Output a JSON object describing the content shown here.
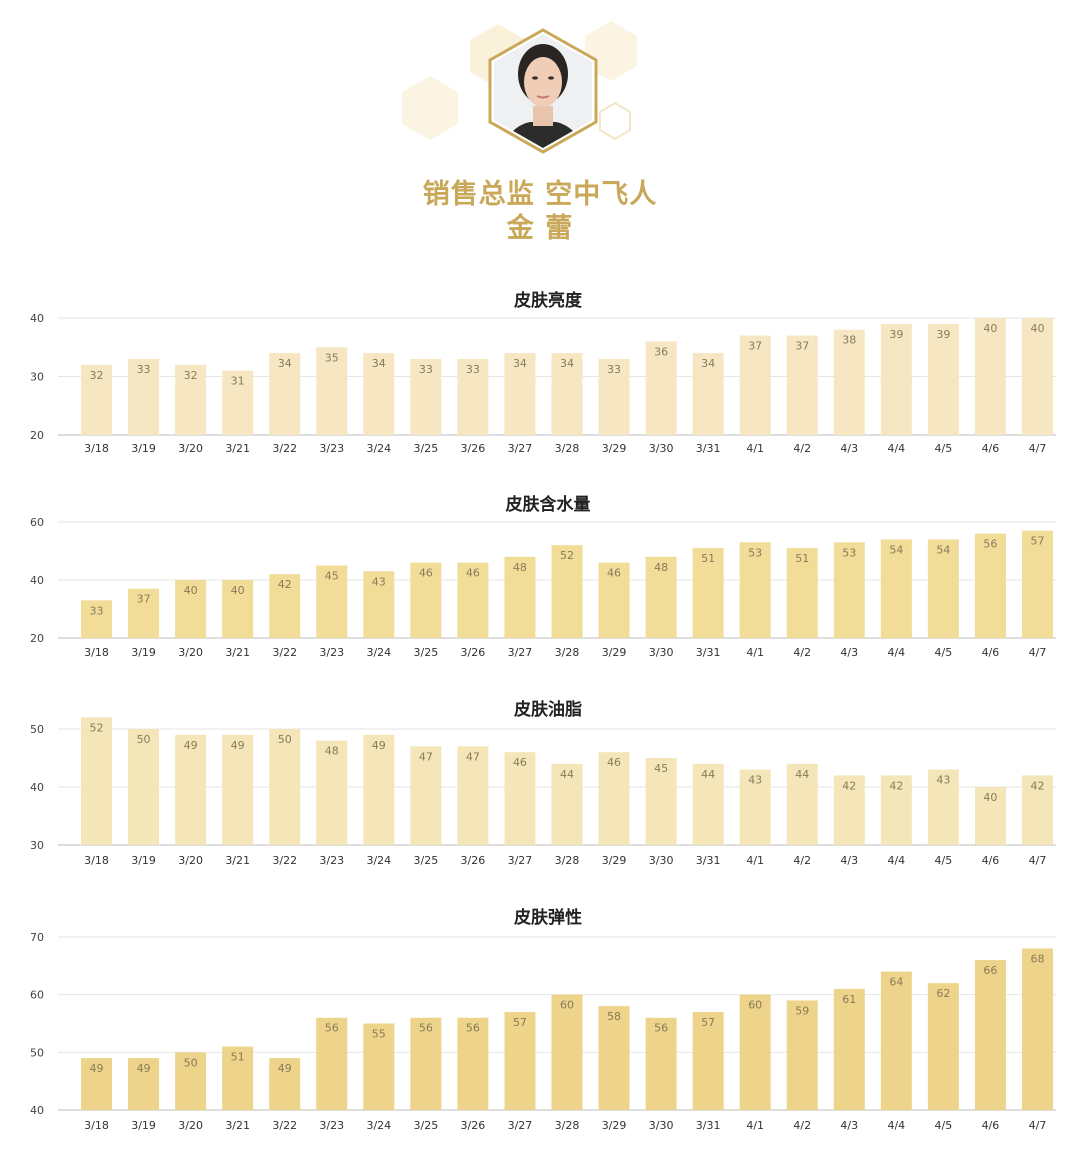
{
  "profile": {
    "title_line": "销售总监 空中飞人",
    "name_line": "金 蕾"
  },
  "colors": {
    "accent_gold": "#c9a85a",
    "bar_light": "#f6e7c2",
    "bar_mid": "#f1dc98",
    "bar_pale": "#f4e6b8",
    "bar_deep": "#edd48a"
  },
  "chart_data": [
    {
      "type": "bar",
      "title": "皮肤亮度",
      "categories": [
        "3/18",
        "3/19",
        "3/20",
        "3/21",
        "3/22",
        "3/23",
        "3/24",
        "3/25",
        "3/26",
        "3/27",
        "3/28",
        "3/29",
        "3/30",
        "3/31",
        "4/1",
        "4/2",
        "4/3",
        "4/4",
        "4/5",
        "4/6",
        "4/7"
      ],
      "values": [
        32,
        33,
        32,
        31,
        34,
        35,
        34,
        33,
        33,
        34,
        34,
        33,
        36,
        34,
        37,
        37,
        38,
        39,
        39,
        40,
        40
      ],
      "ylim": [
        20,
        40
      ],
      "yticks": [
        20,
        30,
        40
      ],
      "grid": true,
      "color": "#f6e7c2"
    },
    {
      "type": "bar",
      "title": "皮肤含水量",
      "categories": [
        "3/18",
        "3/19",
        "3/20",
        "3/21",
        "3/22",
        "3/23",
        "3/24",
        "3/25",
        "3/26",
        "3/27",
        "3/28",
        "3/29",
        "3/30",
        "3/31",
        "4/1",
        "4/2",
        "4/3",
        "4/4",
        "4/5",
        "4/6",
        "4/7"
      ],
      "values": [
        33,
        37,
        40,
        40,
        42,
        45,
        43,
        46,
        46,
        48,
        52,
        46,
        48,
        51,
        53,
        51,
        53,
        54,
        54,
        56,
        57
      ],
      "ylim": [
        20,
        60
      ],
      "yticks": [
        20,
        40,
        60
      ],
      "grid": true,
      "color": "#f1dc98"
    },
    {
      "type": "bar",
      "title": "皮肤油脂",
      "categories": [
        "3/18",
        "3/19",
        "3/20",
        "3/21",
        "3/22",
        "3/23",
        "3/24",
        "3/25",
        "3/26",
        "3/27",
        "3/28",
        "3/29",
        "3/30",
        "3/31",
        "4/1",
        "4/2",
        "4/3",
        "4/4",
        "4/5",
        "4/6",
        "4/7"
      ],
      "values": [
        52,
        50,
        49,
        49,
        50,
        48,
        49,
        47,
        47,
        46,
        44,
        46,
        45,
        44,
        43,
        44,
        42,
        42,
        43,
        40,
        42
      ],
      "ylim": [
        30,
        50
      ],
      "yticks": [
        30,
        40,
        50
      ],
      "grid": true,
      "color": "#f4e6b8"
    },
    {
      "type": "bar",
      "title": "皮肤弹性",
      "categories": [
        "3/18",
        "3/19",
        "3/20",
        "3/21",
        "3/22",
        "3/23",
        "3/24",
        "3/25",
        "3/26",
        "3/27",
        "3/28",
        "3/29",
        "3/30",
        "3/31",
        "4/1",
        "4/2",
        "4/3",
        "4/4",
        "4/5",
        "4/6",
        "4/7"
      ],
      "values": [
        49,
        49,
        50,
        51,
        49,
        56,
        55,
        56,
        56,
        57,
        60,
        58,
        56,
        57,
        60,
        59,
        61,
        64,
        62,
        66,
        68
      ],
      "ylim": [
        40,
        70
      ],
      "yticks": [
        40,
        50,
        60,
        70
      ],
      "grid": true,
      "color": "#edd48a"
    }
  ]
}
